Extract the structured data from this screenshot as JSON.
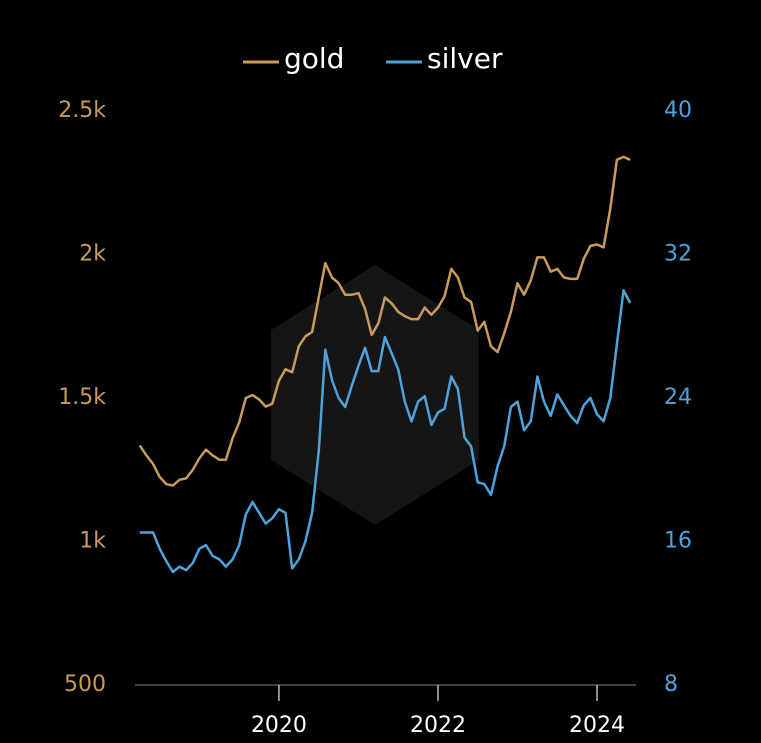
{
  "chart_data": {
    "type": "line",
    "x": [
      2018.25,
      2018.333,
      2018.417,
      2018.5,
      2018.583,
      2018.667,
      2018.75,
      2018.833,
      2018.917,
      2019.0,
      2019.083,
      2019.167,
      2019.25,
      2019.333,
      2019.417,
      2019.5,
      2019.583,
      2019.667,
      2019.75,
      2019.833,
      2019.917,
      2020.0,
      2020.083,
      2020.167,
      2020.25,
      2020.333,
      2020.417,
      2020.5,
      2020.583,
      2020.667,
      2020.75,
      2020.833,
      2020.917,
      2021.0,
      2021.083,
      2021.167,
      2021.25,
      2021.333,
      2021.417,
      2021.5,
      2021.583,
      2021.667,
      2021.75,
      2021.833,
      2021.917,
      2022.0,
      2022.083,
      2022.167,
      2022.25,
      2022.333,
      2022.417,
      2022.5,
      2022.583,
      2022.667,
      2022.75,
      2022.833,
      2022.917,
      2023.0,
      2023.083,
      2023.167,
      2023.25,
      2023.333,
      2023.417,
      2023.5,
      2023.583,
      2023.667,
      2023.75,
      2023.833,
      2023.917,
      2024.0,
      2024.083,
      2024.167,
      2024.25,
      2024.333,
      2024.417
    ],
    "series": [
      {
        "name": "gold",
        "color": "#c89b5c",
        "axis": "y",
        "values": [
          1335,
          1300,
          1270,
          1225,
          1200,
          1195,
          1215,
          1220,
          1250,
          1290,
          1320,
          1300,
          1285,
          1285,
          1360,
          1415,
          1500,
          1510,
          1495,
          1470,
          1480,
          1560,
          1600,
          1590,
          1680,
          1715,
          1730,
          1850,
          1970,
          1920,
          1900,
          1860,
          1860,
          1865,
          1810,
          1720,
          1760,
          1850,
          1830,
          1800,
          1785,
          1775,
          1775,
          1815,
          1790,
          1815,
          1855,
          1950,
          1920,
          1850,
          1835,
          1735,
          1765,
          1680,
          1660,
          1725,
          1800,
          1900,
          1860,
          1910,
          1990,
          1990,
          1940,
          1950,
          1920,
          1915,
          1915,
          1985,
          2030,
          2035,
          2025,
          2160,
          2330,
          2340,
          2330
        ]
      },
      {
        "name": "silver",
        "color": "#4fa3dc",
        "axis": "y2",
        "values": [
          16.5,
          16.5,
          16.5,
          15.6,
          14.9,
          14.3,
          14.6,
          14.4,
          14.8,
          15.6,
          15.8,
          15.2,
          15.0,
          14.6,
          15.0,
          15.8,
          17.5,
          18.2,
          17.6,
          17.0,
          17.3,
          17.8,
          17.6,
          14.5,
          15.0,
          16.0,
          17.6,
          21.0,
          26.7,
          25.0,
          24.0,
          23.5,
          24.7,
          25.8,
          26.8,
          25.5,
          25.5,
          27.4,
          26.5,
          25.6,
          23.8,
          22.7,
          23.8,
          24.1,
          22.5,
          23.2,
          23.4,
          25.2,
          24.5,
          21.8,
          21.3,
          19.3,
          19.2,
          18.6,
          20.2,
          21.3,
          23.5,
          23.8,
          22.2,
          22.7,
          25.2,
          23.8,
          23.0,
          24.2,
          23.6,
          23.0,
          22.6,
          23.6,
          24.0,
          23.1,
          22.7,
          24.0,
          27.0,
          30.0,
          29.3
        ]
      }
    ],
    "xlim": [
      2018.19,
      2024.49
    ],
    "xticks": [
      2020,
      2022,
      2024
    ],
    "ylim": [
      500,
      2500
    ],
    "yticks": [
      500,
      {
        "value": 1000,
        "label": "1k"
      },
      {
        "value": 1500,
        "label": "1.5k"
      },
      {
        "value": 2000,
        "label": "2k"
      },
      {
        "value": 2500,
        "label": "2.5k"
      }
    ],
    "y2lim": [
      8,
      40
    ],
    "y2ticks": [
      8,
      16,
      24,
      32,
      40
    ],
    "legend": "top"
  }
}
